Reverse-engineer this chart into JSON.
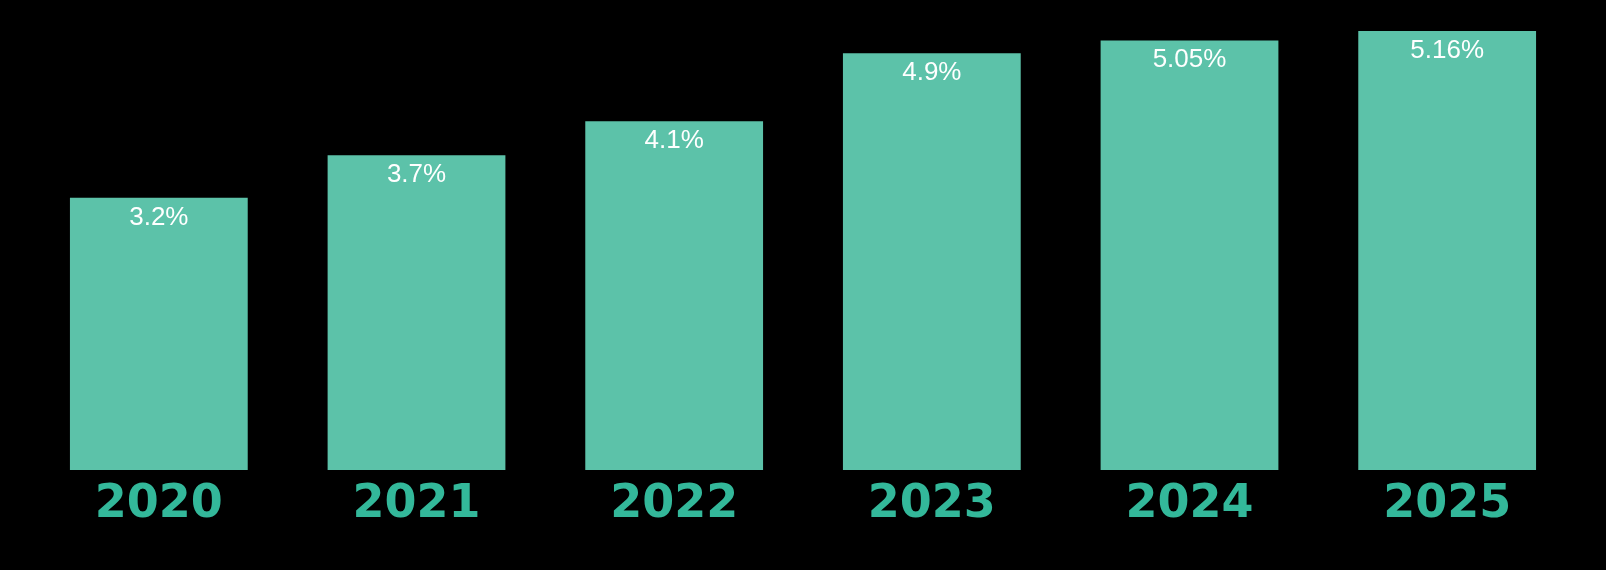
{
  "chart_data": {
    "type": "bar",
    "categories": [
      "2020",
      "2021",
      "2022",
      "2023",
      "2024",
      "2025"
    ],
    "values": [
      3.2,
      3.7,
      4.1,
      4.9,
      5.05,
      5.16
    ],
    "value_labels": [
      "3.2%",
      "3.7%",
      "4.1%",
      "4.9%",
      "5.05%",
      "5.16%"
    ],
    "color": "#5cc2a9",
    "grid": false,
    "legend": false
  }
}
